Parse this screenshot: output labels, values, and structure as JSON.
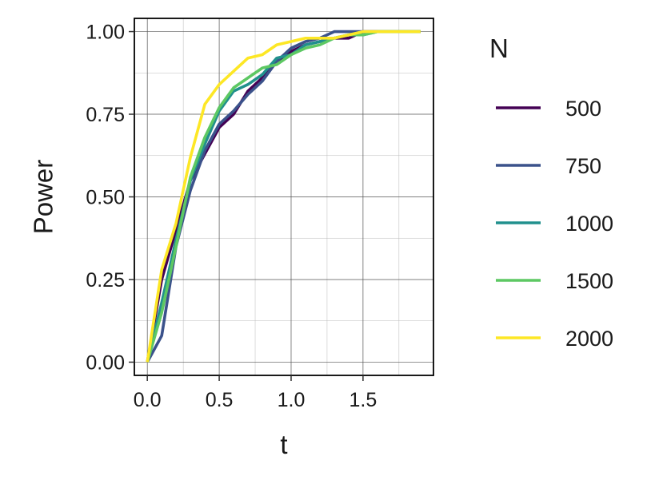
{
  "chart_data": {
    "type": "line",
    "xlabel": "t",
    "ylabel": "Power",
    "xlim": [
      -0.09,
      1.99
    ],
    "ylim": [
      -0.04,
      1.04
    ],
    "x_ticks": [
      0.0,
      0.5,
      1.0,
      1.5
    ],
    "x_tick_labels": [
      "0.0",
      "0.5",
      "1.0",
      "1.5"
    ],
    "y_ticks": [
      0.0,
      0.25,
      0.5,
      0.75,
      1.0
    ],
    "y_tick_labels": [
      "0.00",
      "0.25",
      "0.50",
      "0.75",
      "1.00"
    ],
    "grid": true,
    "legend": {
      "title": "N",
      "placement": "right"
    },
    "x": [
      0.0,
      0.1,
      0.2,
      0.3,
      0.4,
      0.5,
      0.6,
      0.7,
      0.8,
      0.9,
      1.0,
      1.1,
      1.2,
      1.3,
      1.4,
      1.5,
      1.6,
      1.7,
      1.8,
      1.9
    ],
    "series": [
      {
        "name": "500",
        "color": "#440154",
        "values": [
          0.0,
          0.25,
          0.4,
          0.55,
          0.63,
          0.71,
          0.75,
          0.82,
          0.86,
          0.91,
          0.94,
          0.96,
          0.97,
          0.98,
          0.98,
          1.0,
          1.0,
          1.0,
          1.0,
          1.0
        ]
      },
      {
        "name": "750",
        "color": "#3b528b",
        "values": [
          0.0,
          0.08,
          0.35,
          0.52,
          0.64,
          0.72,
          0.76,
          0.81,
          0.85,
          0.91,
          0.95,
          0.97,
          0.98,
          1.0,
          1.0,
          1.0,
          1.0,
          1.0,
          1.0,
          1.0
        ]
      },
      {
        "name": "1000",
        "color": "#21908d",
        "values": [
          0.0,
          0.18,
          0.37,
          0.55,
          0.66,
          0.76,
          0.82,
          0.84,
          0.87,
          0.92,
          0.93,
          0.96,
          0.97,
          0.98,
          0.99,
          0.99,
          1.0,
          1.0,
          1.0,
          1.0
        ]
      },
      {
        "name": "1500",
        "color": "#5dc863",
        "values": [
          0.0,
          0.15,
          0.35,
          0.56,
          0.68,
          0.77,
          0.83,
          0.86,
          0.89,
          0.9,
          0.93,
          0.95,
          0.96,
          0.98,
          0.99,
          0.99,
          1.0,
          1.0,
          1.0,
          1.0
        ]
      },
      {
        "name": "2000",
        "color": "#fde725",
        "values": [
          0.0,
          0.28,
          0.42,
          0.62,
          0.78,
          0.84,
          0.88,
          0.92,
          0.93,
          0.96,
          0.97,
          0.98,
          0.98,
          0.98,
          0.99,
          1.0,
          1.0,
          1.0,
          1.0,
          1.0
        ]
      }
    ]
  }
}
